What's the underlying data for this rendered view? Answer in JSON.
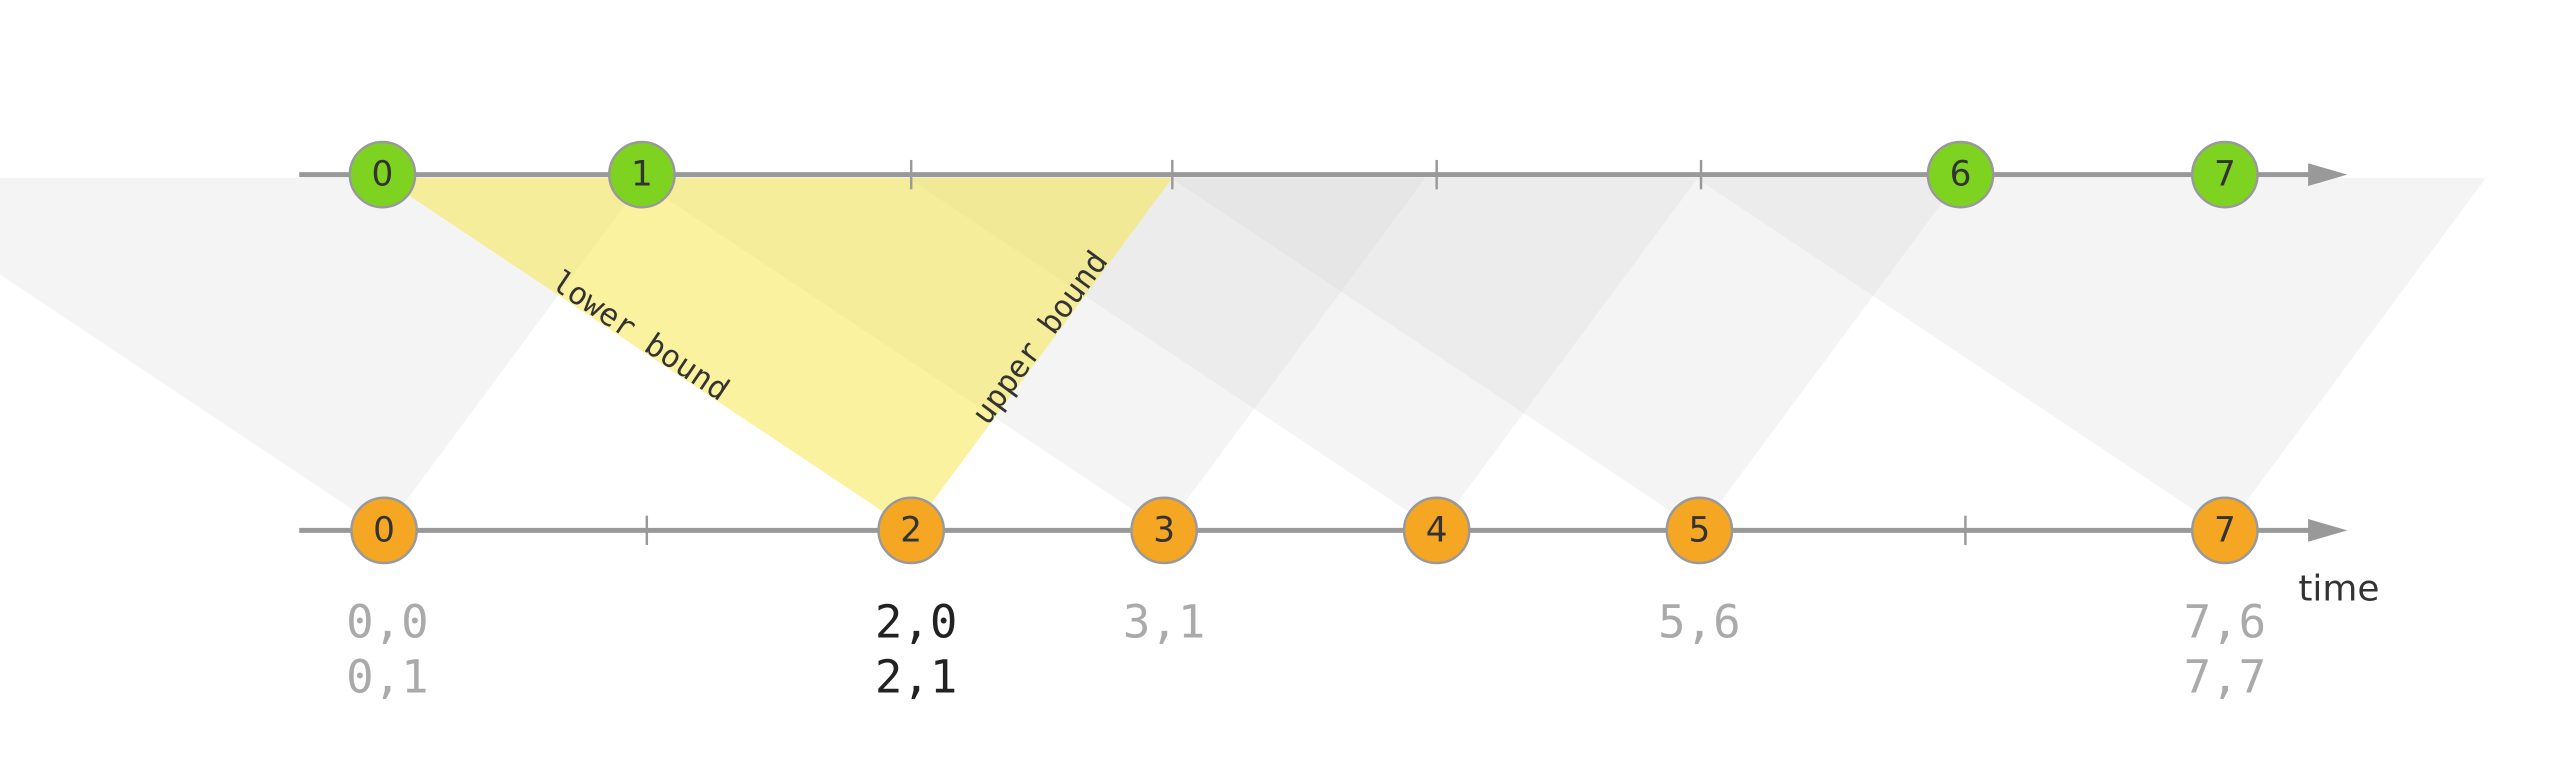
{
  "top_events": [
    "0",
    "1",
    "6",
    "7"
  ],
  "bottom_events": [
    "0",
    "2",
    "3",
    "4",
    "5",
    "7"
  ],
  "annotations": {
    "lower": "lower bound",
    "upper": "upper bound"
  },
  "axis_label": "time",
  "join_results": [
    [
      "0,0",
      "0,1"
    ],
    [
      "2,0",
      "2,1"
    ],
    [
      "3,1"
    ],
    [
      "5,6"
    ],
    [
      "7,6",
      "7,7"
    ]
  ]
}
